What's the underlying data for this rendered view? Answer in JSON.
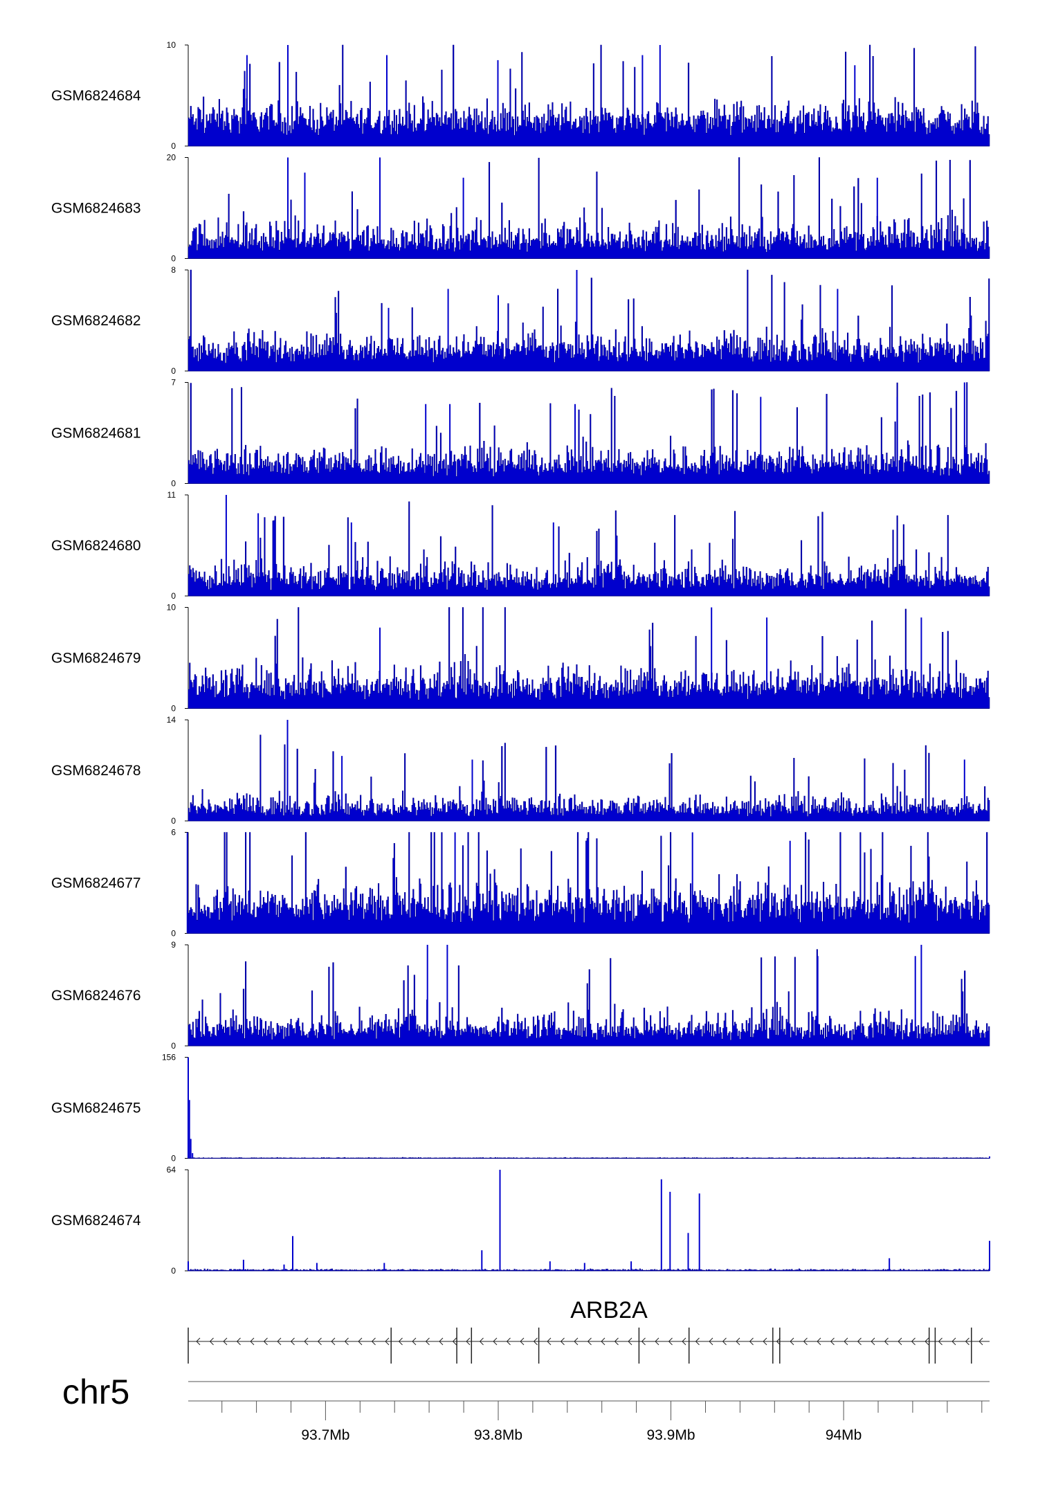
{
  "chart_data": {
    "type": "area",
    "title": "",
    "colors": {
      "signal": "#0000cd",
      "signal_stroke": "#00008b",
      "axis": "#000000",
      "gene": "#222222"
    },
    "tracks": [
      {
        "name": "GSM6824684",
        "ymin": "0",
        "ymax": "10",
        "ylim": [
          0,
          10
        ],
        "baseline": 2.5,
        "noise": 2.5,
        "spike_rate": 0.05,
        "spike_max": 8,
        "peaks": [
          {
            "x": 93.6545,
            "y": 9
          },
          {
            "x": 93.6782,
            "y": 10
          },
          {
            "x": 93.7355,
            "y": 9
          },
          {
            "x": 93.7998,
            "y": 8.5
          },
          {
            "x": 93.8835,
            "y": 9
          },
          {
            "x": 93.8937,
            "y": 10
          },
          {
            "x": 94.0065,
            "y": 8
          }
        ]
      },
      {
        "name": "GSM6824683",
        "ymin": "0",
        "ymax": "20",
        "ylim": [
          0,
          20
        ],
        "baseline": 3,
        "noise": 6,
        "spike_rate": 0.05,
        "spike_max": 16,
        "peaks": [
          {
            "x": 93.6782,
            "y": 20
          },
          {
            "x": 93.7315,
            "y": 20
          },
          {
            "x": 93.688,
            "y": 17
          },
          {
            "x": 93.7798,
            "y": 16
          },
          {
            "x": 94.0195,
            "y": 16
          }
        ]
      },
      {
        "name": "GSM6824682",
        "ymin": "0",
        "ymax": "8",
        "ylim": [
          0,
          8
        ],
        "baseline": 1.5,
        "noise": 2.2,
        "spike_rate": 0.05,
        "spike_max": 6,
        "peaks": [
          {
            "x": 93.8455,
            "y": 8
          },
          {
            "x": 93.771,
            "y": 6.5
          },
          {
            "x": 93.7365,
            "y": 5
          },
          {
            "x": 93.9965,
            "y": 6.5
          },
          {
            "x": 93.8,
            "y": 6
          }
        ]
      },
      {
        "name": "GSM6824681",
        "ymin": "0",
        "ymax": "7",
        "ylim": [
          0,
          7
        ],
        "baseline": 1.2,
        "noise": 2.0,
        "spike_rate": 0.05,
        "spike_max": 5.5,
        "peaks": [
          {
            "x": 93.758,
            "y": 5.5
          },
          {
            "x": 93.772,
            "y": 5.5
          },
          {
            "x": 93.8445,
            "y": 5.5
          },
          {
            "x": 93.952,
            "y": 6
          },
          {
            "x": 94.031,
            "y": 6
          },
          {
            "x": 94.07,
            "y": 7
          }
        ]
      },
      {
        "name": "GSM6824680",
        "ymin": "0",
        "ymax": "11",
        "ylim": [
          0,
          11
        ],
        "baseline": 1.5,
        "noise": 3.0,
        "spike_rate": 0.05,
        "spike_max": 8,
        "peaks": [
          {
            "x": 93.6425,
            "y": 11
          },
          {
            "x": 93.661,
            "y": 9
          },
          {
            "x": 93.715,
            "y": 8
          },
          {
            "x": 93.832,
            "y": 8
          }
        ]
      },
      {
        "name": "GSM6824679",
        "ymin": "0",
        "ymax": "10",
        "ylim": [
          0,
          10
        ],
        "baseline": 2,
        "noise": 3.0,
        "spike_rate": 0.05,
        "spike_max": 8,
        "peaks": [
          {
            "x": 93.9235,
            "y": 10
          },
          {
            "x": 93.9555,
            "y": 9
          },
          {
            "x": 94.045,
            "y": 9
          },
          {
            "x": 93.7315,
            "y": 8
          }
        ]
      },
      {
        "name": "GSM6824678",
        "ymin": "0",
        "ymax": "14",
        "ylim": [
          0,
          14
        ],
        "baseline": 1.5,
        "noise": 3.0,
        "spike_rate": 0.05,
        "spike_max": 9,
        "peaks": [
          {
            "x": 93.678,
            "y": 14
          },
          {
            "x": 93.7095,
            "y": 9
          },
          {
            "x": 93.785,
            "y": 8.5
          },
          {
            "x": 94.07,
            "y": 8.5
          }
        ]
      },
      {
        "name": "GSM6824677",
        "ymin": "0",
        "ymax": "6",
        "ylim": [
          0,
          6
        ],
        "baseline": 1.5,
        "noise": 2.0,
        "spike_rate": 0.07,
        "spike_max": 5,
        "peaks": [
          {
            "x": 93.62,
            "y": 6
          },
          {
            "x": 93.775,
            "y": 6
          },
          {
            "x": 93.9125,
            "y": 6
          },
          {
            "x": 93.969,
            "y": 5.5
          }
        ]
      },
      {
        "name": "GSM6824676",
        "ymin": "0",
        "ymax": "9",
        "ylim": [
          0,
          9
        ],
        "baseline": 1.2,
        "noise": 2.5,
        "spike_rate": 0.05,
        "spike_max": 6.5,
        "peaks": [
          {
            "x": 93.759,
            "y": 9
          },
          {
            "x": 93.7705,
            "y": 9
          },
          {
            "x": 94.045,
            "y": 9
          },
          {
            "x": 94.0415,
            "y": 8
          },
          {
            "x": 93.985,
            "y": 8
          }
        ]
      },
      {
        "name": "GSM6824675",
        "ymin": "0",
        "ymax": "156",
        "ylim": [
          0,
          156
        ],
        "baseline": 0.5,
        "noise": 1.0,
        "spike_rate": 0,
        "spike_max": 0,
        "peaks": [
          {
            "x": 93.6205,
            "y": 156
          },
          {
            "x": 93.6212,
            "y": 90
          },
          {
            "x": 93.622,
            "y": 30
          },
          {
            "x": 93.623,
            "y": 8
          },
          {
            "x": 94.0845,
            "y": 3
          }
        ]
      },
      {
        "name": "GSM6824674",
        "ymin": "0",
        "ymax": "64",
        "ylim": [
          0,
          64
        ],
        "baseline": 0.4,
        "noise": 1.0,
        "spike_rate": 0,
        "spike_max": 0,
        "peaks": [
          {
            "x": 93.801,
            "y": 64
          },
          {
            "x": 93.8945,
            "y": 58
          },
          {
            "x": 93.8995,
            "y": 50
          },
          {
            "x": 93.9165,
            "y": 49
          },
          {
            "x": 93.91,
            "y": 24
          },
          {
            "x": 93.681,
            "y": 22
          },
          {
            "x": 93.7905,
            "y": 13
          },
          {
            "x": 94.0845,
            "y": 19
          },
          {
            "x": 93.6525,
            "y": 7
          },
          {
            "x": 93.6205,
            "y": 6
          },
          {
            "x": 94.0265,
            "y": 8
          },
          {
            "x": 93.877,
            "y": 6
          },
          {
            "x": 93.85,
            "y": 5
          },
          {
            "x": 93.83,
            "y": 6
          },
          {
            "x": 93.734,
            "y": 5
          },
          {
            "x": 93.695,
            "y": 5
          },
          {
            "x": 93.676,
            "y": 4
          }
        ]
      }
    ],
    "gene": {
      "name": "ARB2A",
      "strand": "-",
      "start": 93.6205,
      "end": 94.0845,
      "exons": [
        93.738,
        93.776,
        93.7845,
        93.8235,
        93.8815,
        93.9105,
        93.959,
        93.963,
        94.0495,
        94.053,
        94.074
      ]
    },
    "axis": {
      "chromosome": "chr5",
      "xlim": [
        93.6205,
        94.0845
      ],
      "major_ticks": [
        93.7,
        93.8,
        93.9,
        94.0
      ],
      "major_tick_labels": [
        "93.7Mb",
        "93.8Mb",
        "93.9Mb",
        "94Mb"
      ],
      "minor_ticks": [
        93.64,
        93.66,
        93.68,
        93.72,
        93.74,
        93.76,
        93.78,
        93.82,
        93.84,
        93.86,
        93.88,
        93.92,
        93.94,
        93.96,
        93.98,
        94.02,
        94.04,
        94.06,
        94.08
      ]
    }
  }
}
